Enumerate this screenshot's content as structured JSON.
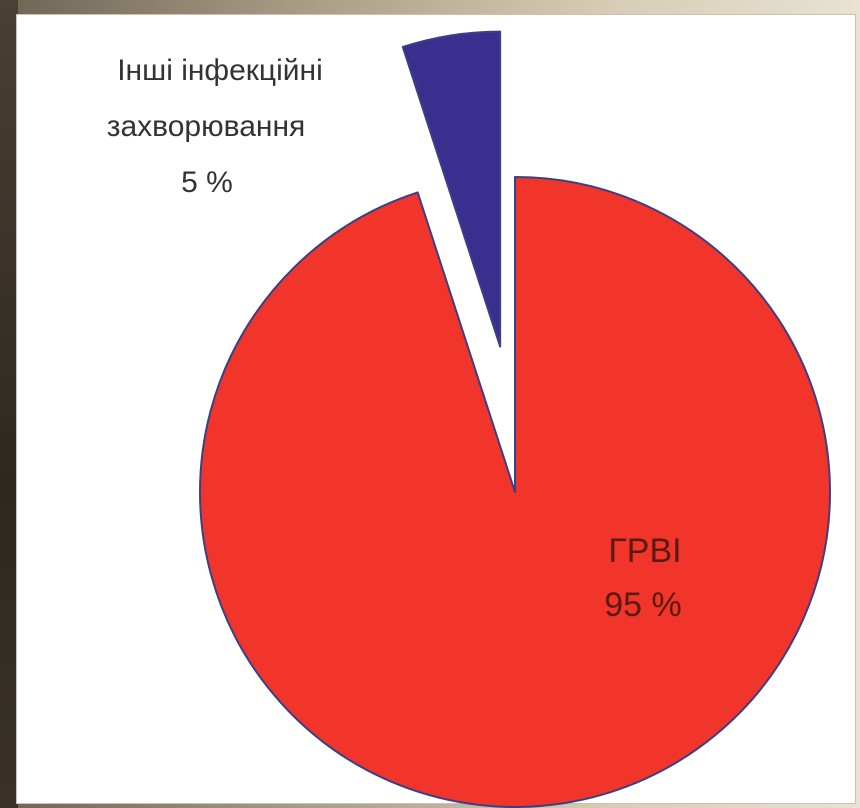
{
  "chart_data": {
    "type": "pie",
    "title": "",
    "slices": [
      {
        "label": "ГРВІ",
        "value": 95,
        "value_text": "95 %",
        "color": "#f2352b",
        "exploded": false
      },
      {
        "label_lines": [
          "Інші інфекційні",
          "захворювання"
        ],
        "value": 5,
        "value_text": "5 %",
        "color": "#3a2f8f",
        "exploded": true
      }
    ],
    "legend": "none"
  }
}
